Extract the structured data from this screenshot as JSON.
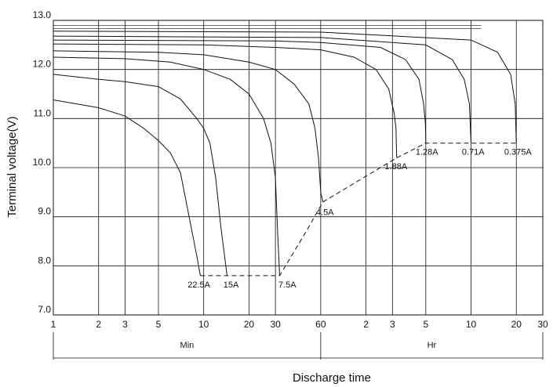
{
  "chart_data": {
    "type": "line",
    "ylabel": "Terminal voltage(V)",
    "xlabel": "Discharge time",
    "ylim": [
      7.0,
      13.0
    ],
    "y_ticks": [
      "7.0",
      "8.0",
      "9.0",
      "10.0",
      "11.0",
      "12.0",
      "13.0"
    ],
    "x_scale": "log",
    "x_ticks": [
      {
        "label": "1",
        "minutes": 1
      },
      {
        "label": "2",
        "minutes": 2
      },
      {
        "label": "3",
        "minutes": 3
      },
      {
        "label": "5",
        "minutes": 5
      },
      {
        "label": "10",
        "minutes": 10
      },
      {
        "label": "20",
        "minutes": 20
      },
      {
        "label": "30",
        "minutes": 30
      },
      {
        "label": "60",
        "minutes": 60
      },
      {
        "label": "2",
        "minutes": 120
      },
      {
        "label": "3",
        "minutes": 180
      },
      {
        "label": "5",
        "minutes": 300
      },
      {
        "label": "10",
        "minutes": 600
      },
      {
        "label": "20",
        "minutes": 1200
      },
      {
        "label": "30",
        "minutes": 1800
      }
    ],
    "x_sections": [
      {
        "label": "Min",
        "from_minutes": 1,
        "to_minutes": 60
      },
      {
        "label": "Hr",
        "from_minutes": 60,
        "to_minutes": 1800
      }
    ],
    "series": [
      {
        "name": "22.5A",
        "label_at": [
          9.3,
          7.62
        ],
        "points": [
          [
            1,
            11.38
          ],
          [
            2,
            11.22
          ],
          [
            3,
            11.05
          ],
          [
            4,
            10.8
          ],
          [
            5,
            10.55
          ],
          [
            6,
            10.3
          ],
          [
            7,
            9.9
          ],
          [
            8,
            9.0
          ],
          [
            9,
            8.2
          ],
          [
            9.5,
            7.8
          ]
        ]
      },
      {
        "name": "15A",
        "label_at": [
          15.2,
          7.62
        ],
        "points": [
          [
            1,
            11.9
          ],
          [
            2,
            11.8
          ],
          [
            3,
            11.75
          ],
          [
            5,
            11.65
          ],
          [
            7,
            11.4
          ],
          [
            9,
            11.0
          ],
          [
            10,
            10.8
          ],
          [
            11,
            10.5
          ],
          [
            12,
            9.8
          ],
          [
            13,
            8.8
          ],
          [
            14.3,
            7.8
          ]
        ]
      },
      {
        "name": "7.5A",
        "label_at": [
          36,
          7.62
        ],
        "points": [
          [
            1,
            12.25
          ],
          [
            3,
            12.22
          ],
          [
            6,
            12.15
          ],
          [
            10,
            12.0
          ],
          [
            15,
            11.8
          ],
          [
            20,
            11.5
          ],
          [
            25,
            11.0
          ],
          [
            28,
            10.5
          ],
          [
            30,
            9.8
          ],
          [
            31,
            8.7
          ],
          [
            32,
            7.8
          ]
        ]
      },
      {
        "name": "4.5A",
        "label_at": [
          64,
          9.1
        ],
        "points": [
          [
            1,
            12.38
          ],
          [
            5,
            12.35
          ],
          [
            10,
            12.3
          ],
          [
            20,
            12.15
          ],
          [
            30,
            12.0
          ],
          [
            40,
            11.7
          ],
          [
            50,
            11.3
          ],
          [
            55,
            10.8
          ],
          [
            58,
            10.2
          ],
          [
            60,
            9.5
          ],
          [
            62,
            9.3
          ]
        ]
      },
      {
        "name": "1.88A",
        "label_at": [
          190,
          10.03
        ],
        "points": [
          [
            1,
            12.52
          ],
          [
            10,
            12.5
          ],
          [
            30,
            12.45
          ],
          [
            60,
            12.4
          ],
          [
            100,
            12.25
          ],
          [
            140,
            12.0
          ],
          [
            170,
            11.6
          ],
          [
            185,
            11.1
          ],
          [
            190,
            10.8
          ],
          [
            192,
            10.2
          ]
        ]
      },
      {
        "name": "1.28A",
        "label_at": [
          305,
          10.33
        ],
        "points": [
          [
            1,
            12.6
          ],
          [
            30,
            12.58
          ],
          [
            60,
            12.55
          ],
          [
            150,
            12.45
          ],
          [
            220,
            12.2
          ],
          [
            270,
            11.8
          ],
          [
            290,
            11.3
          ],
          [
            298,
            10.9
          ],
          [
            300,
            10.5
          ]
        ]
      },
      {
        "name": "0.71A",
        "label_at": [
          620,
          10.33
        ],
        "points": [
          [
            1,
            12.68
          ],
          [
            60,
            12.65
          ],
          [
            300,
            12.5
          ],
          [
            450,
            12.2
          ],
          [
            540,
            11.8
          ],
          [
            585,
            11.3
          ],
          [
            600,
            10.5
          ]
        ]
      },
      {
        "name": "0.375A",
        "label_at": [
          1230,
          10.33
        ],
        "points": [
          [
            1,
            12.78
          ],
          [
            60,
            12.76
          ],
          [
            600,
            12.6
          ],
          [
            900,
            12.35
          ],
          [
            1100,
            11.9
          ],
          [
            1180,
            11.3
          ],
          [
            1200,
            10.5
          ]
        ]
      }
    ],
    "cutoff_line": {
      "style": "dashed",
      "points": [
        [
          9.5,
          7.8
        ],
        [
          14.3,
          7.8
        ],
        [
          32,
          7.8
        ],
        [
          48,
          8.7
        ],
        [
          62,
          9.3
        ],
        [
          192,
          10.2
        ],
        [
          300,
          10.5
        ],
        [
          600,
          10.5
        ],
        [
          1200,
          10.5
        ]
      ]
    },
    "extra_flat_lines_v": [
      12.83,
      12.9
    ]
  }
}
